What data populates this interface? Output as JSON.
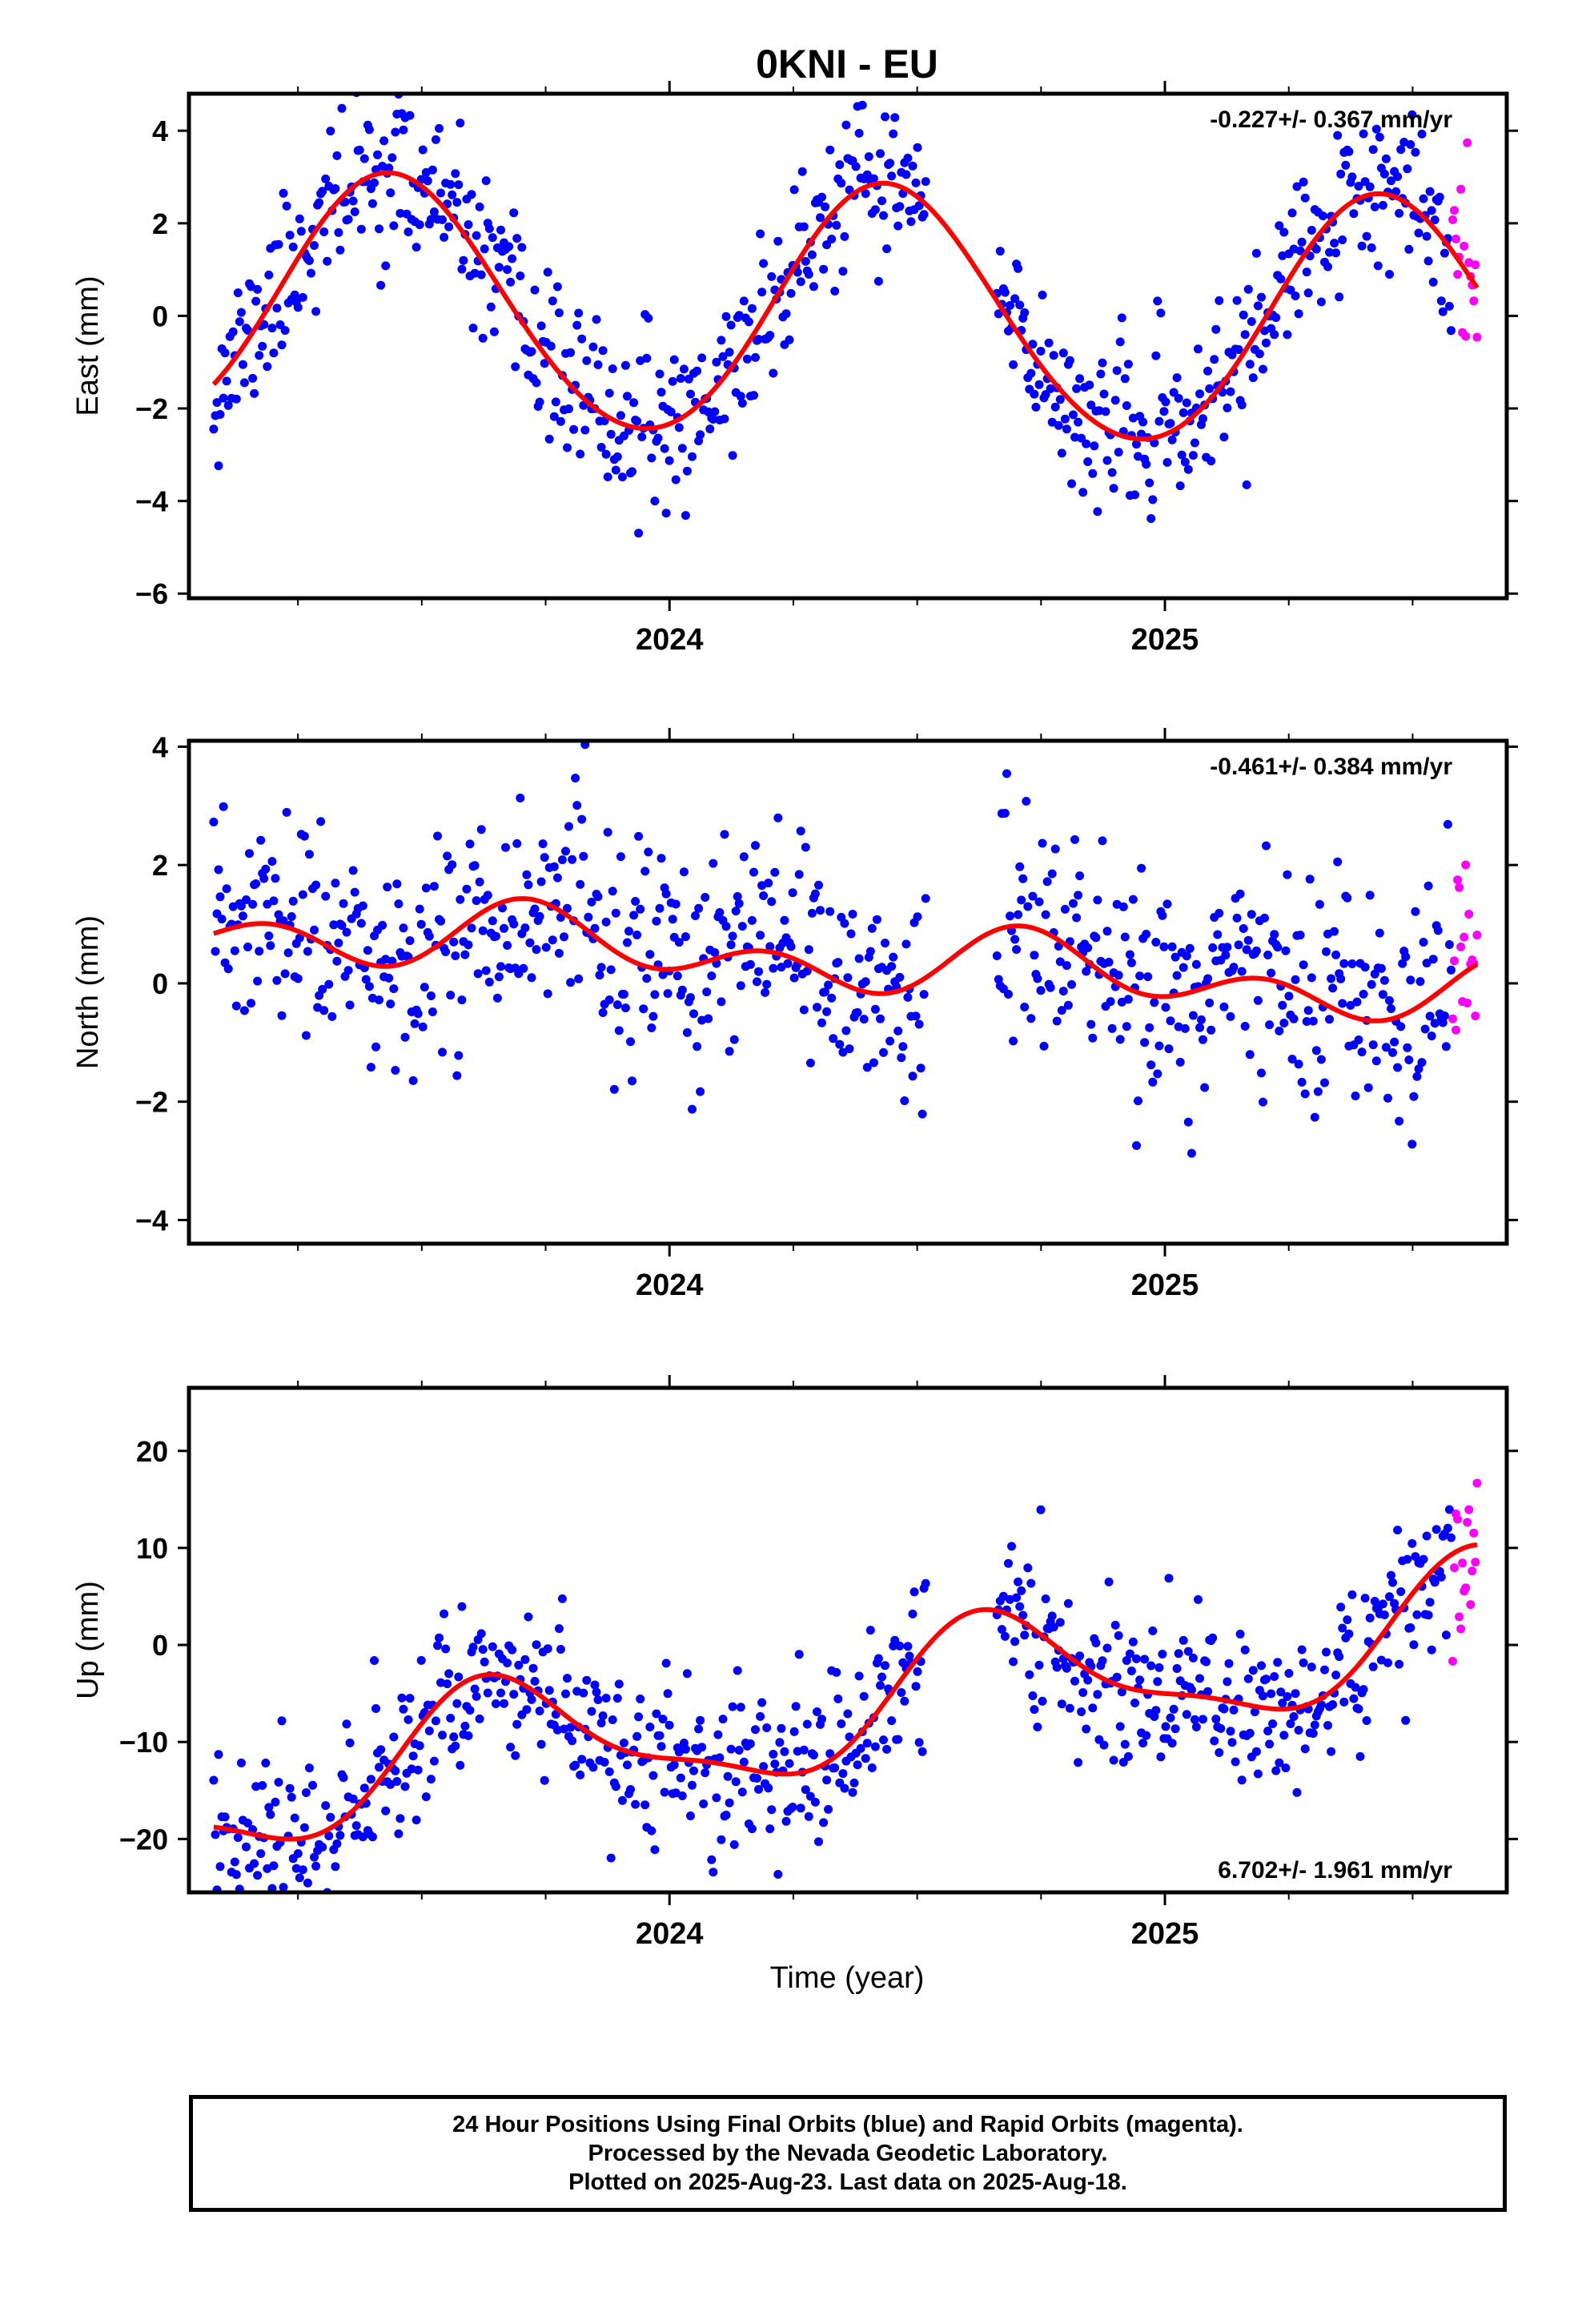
{
  "title": "0KNI - EU",
  "colors": {
    "final_orbits": "#0000ff",
    "rapid_orbits": "#ff00ff",
    "model_fit": "#ff0000",
    "axes": "#000000",
    "background": "#ffffff"
  },
  "x_axis": {
    "label": "Time (year)",
    "range": [
      2023.03,
      2025.69
    ],
    "major_ticks": [
      2024,
      2025
    ],
    "major_tick_labels": [
      "2024",
      "2025"
    ],
    "minor_ticks": [
      2023.25,
      2023.5,
      2023.75,
      2024.25,
      2024.5,
      2024.75,
      2025.25,
      2025.5
    ]
  },
  "footer": {
    "line1": "24 Hour Positions Using Final Orbits (blue) and Rapid Orbits (magenta).",
    "line2": "Processed by the Nevada Geodetic Laboratory.",
    "line3": "Plotted on 2025-Aug-23. Last data on 2025-Aug-18."
  },
  "chart_data": [
    {
      "type": "scatter",
      "ylabel": "East (mm)",
      "ylim": [
        -6.1,
        4.8
      ],
      "yticks": [
        -6,
        -4,
        -2,
        0,
        2,
        4
      ],
      "ytick_labels": [
        "−6",
        "−4",
        "−2",
        "0",
        "2",
        "4"
      ],
      "rate_label": "-0.227+/- 0.367 mm/yr",
      "rate_label_position": "top-right",
      "data_start": 2023.08,
      "data_end": 2025.63,
      "rapid_start": 2025.58,
      "gap": [
        2024.52,
        2024.66
      ],
      "scatter_sigma": 0.85,
      "point_count": 780,
      "seed": 11,
      "model": {
        "mean": 0.05,
        "trend": -0.227,
        "annual_amp": 2.7,
        "annual_peak": 2023.44,
        "semi_amp": 0.15,
        "semi_peak": 2023.4
      },
      "series": [
        {
          "name": "Final Orbits",
          "color": "#0000ff"
        },
        {
          "name": "Rapid Orbits",
          "color": "#ff00ff"
        }
      ]
    },
    {
      "type": "scatter",
      "ylabel": "North (mm)",
      "ylim": [
        -4.4,
        4.1
      ],
      "yticks": [
        -4,
        -2,
        0,
        2,
        4
      ],
      "ytick_labels": [
        "−4",
        "−2",
        "0",
        "2",
        "4"
      ],
      "rate_label": "-0.461+/- 0.384 mm/yr",
      "rate_label_position": "top-right",
      "data_start": 2023.08,
      "data_end": 2025.63,
      "rapid_start": 2025.58,
      "gap": [
        2024.52,
        2024.66
      ],
      "scatter_sigma": 0.95,
      "point_count": 780,
      "seed": 23,
      "model": {
        "mean": 0.4,
        "trend": -0.461,
        "annual_amp": 0.35,
        "annual_peak": 2023.75,
        "semi_amp": 0.4,
        "semi_peak": 2023.2
      },
      "series": [
        {
          "name": "Final Orbits",
          "color": "#0000ff"
        },
        {
          "name": "Rapid Orbits",
          "color": "#ff00ff"
        }
      ]
    },
    {
      "type": "scatter",
      "ylabel": "Up (mm)",
      "ylim": [
        -25.5,
        26.5
      ],
      "yticks": [
        -20,
        -10,
        0,
        10,
        20
      ],
      "ytick_labels": [
        "−20",
        "−10",
        "0",
        "10",
        "20"
      ],
      "rate_label": "6.702+/- 1.961 mm/yr",
      "rate_label_position": "bottom-right",
      "data_start": 2023.08,
      "data_end": 2025.63,
      "rapid_start": 2025.58,
      "gap": [
        2024.52,
        2024.66
      ],
      "scatter_sigma": 4.2,
      "point_count": 780,
      "seed": 37,
      "model": {
        "mean": -6.5,
        "trend": 6.702,
        "annual_amp": 6.5,
        "annual_peak": 2023.66,
        "semi_amp": 2.0,
        "semi_peak": 2023.6
      },
      "series": [
        {
          "name": "Final Orbits",
          "color": "#0000ff"
        },
        {
          "name": "Rapid Orbits",
          "color": "#ff00ff"
        }
      ]
    }
  ]
}
